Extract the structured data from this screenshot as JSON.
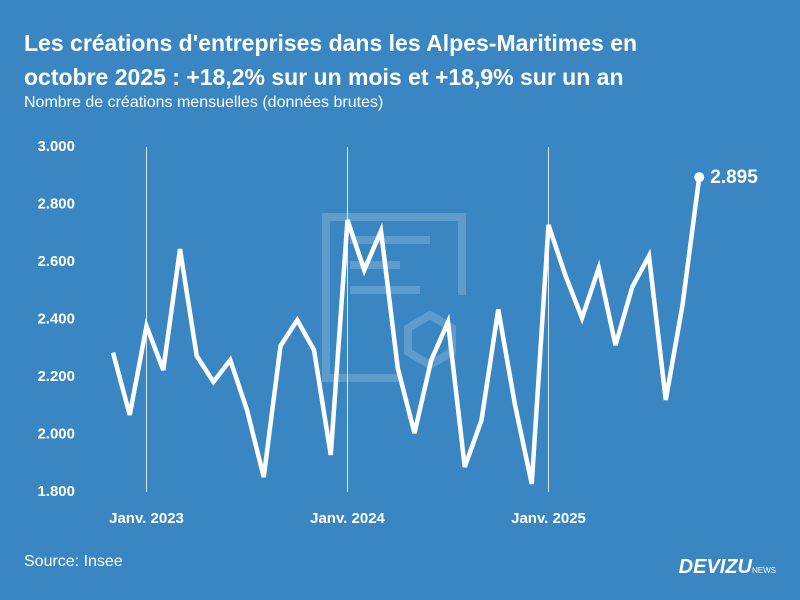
{
  "chart_data": {
    "type": "line",
    "title": "Les créations d'entreprises dans les Alpes-Maritimes en octobre 2025 : +18,2% sur un mois et +18,9% sur un an",
    "subtitle": "Nombre de créations mensuelles (données brutes)",
    "source": "Source: Insee",
    "brand": "DEVIZU",
    "brand_suffix": "NEWS",
    "color": "#ffffff",
    "categories": [
      null,
      null,
      "Janv. 2023",
      null,
      null,
      null,
      null,
      null,
      null,
      null,
      null,
      null,
      null,
      null,
      "Janv. 2024",
      null,
      null,
      null,
      null,
      null,
      null,
      null,
      null,
      null,
      null,
      null,
      "Janv. 2025",
      null,
      null,
      null,
      null,
      null,
      null,
      null,
      null,
      null
    ],
    "values": [
      2285,
      2068,
      2377,
      2224,
      2645,
      2273,
      2183,
      2259,
      2085,
      1852,
      2308,
      2398,
      2294,
      1929,
      2746,
      2572,
      2708,
      2231,
      2005,
      2259,
      2391,
      1887,
      2050,
      2435,
      2103,
      1828,
      2729,
      2555,
      2405,
      2579,
      2311,
      2513,
      2621,
      2120,
      2450,
      2895
    ],
    "value_labels": [
      null,
      null,
      null,
      null,
      null,
      null,
      null,
      null,
      null,
      null,
      null,
      null,
      null,
      null,
      null,
      null,
      null,
      null,
      null,
      null,
      null,
      null,
      null,
      null,
      null,
      null,
      null,
      null,
      null,
      null,
      null,
      null,
      null,
      null,
      null,
      "2.895"
    ],
    "ylim": [
      1800,
      3000
    ],
    "yticks": [
      {
        "value": 1800,
        "label": "1.800"
      },
      {
        "value": 2000,
        "label": "2.000"
      },
      {
        "value": 2200,
        "label": "2.200"
      },
      {
        "value": 2400,
        "label": "2.400"
      },
      {
        "value": 2600,
        "label": "2.600"
      },
      {
        "value": 2800,
        "label": "2.800"
      },
      {
        "value": 3000,
        "label": "3.000"
      }
    ],
    "grid": false
  }
}
